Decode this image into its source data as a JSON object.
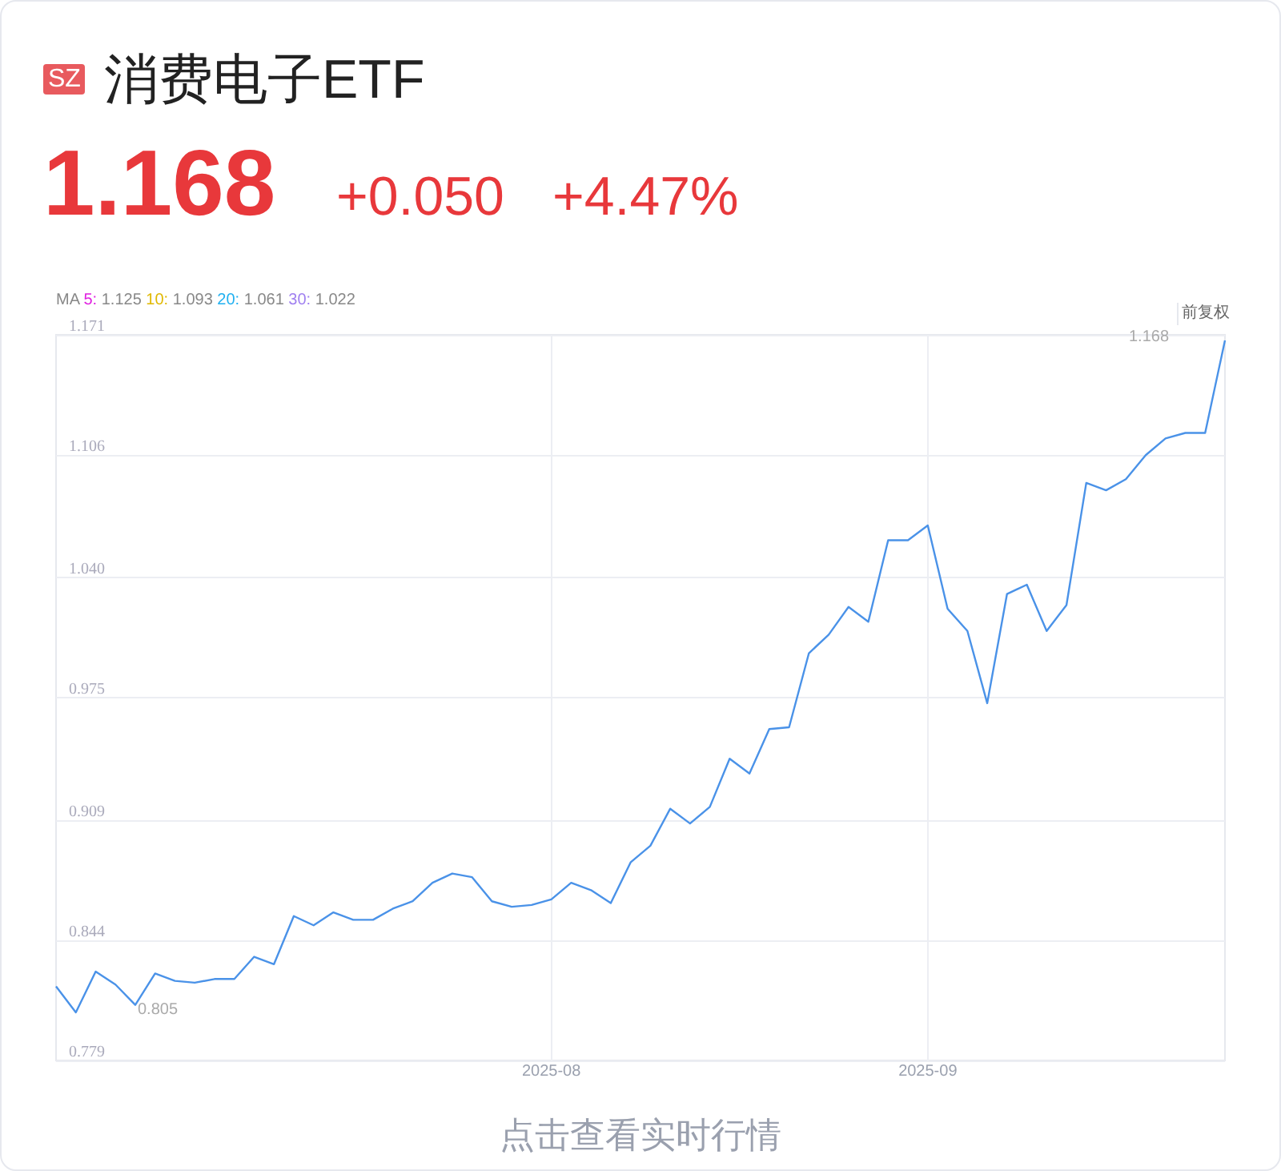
{
  "chart_data": {
    "type": "line",
    "title": "消费电子ETF",
    "annotations": [
      "SZ",
      "1.168",
      "+0.050",
      "+4.47%",
      "MA 5: 1.125 10: 1.093 20: 1.061 30: 1.022",
      "前复权",
      "点击查看实时行情",
      "1.168",
      "0.805"
    ],
    "categories": [
      null,
      null,
      null,
      null,
      null,
      null,
      null,
      null,
      null,
      null,
      null,
      null,
      null,
      null,
      null,
      null,
      null,
      null,
      null,
      null,
      null,
      null,
      null,
      null,
      null,
      "2025-08",
      null,
      null,
      null,
      null,
      null,
      null,
      null,
      null,
      null,
      null,
      null,
      null,
      null,
      null,
      null,
      null,
      null,
      null,
      "2025-09",
      null,
      null,
      null,
      null,
      null,
      null,
      null,
      null,
      null,
      null,
      null,
      null,
      null,
      null,
      null
    ],
    "series": [
      {
        "color": "#4a92e8",
        "values": [
          0.819,
          0.805,
          0.827,
          0.82,
          0.809,
          0.826,
          0.822,
          0.821,
          0.823,
          0.823,
          0.835,
          0.831,
          0.857,
          0.852,
          0.859,
          0.855,
          0.855,
          0.861,
          0.865,
          0.875,
          0.88,
          0.878,
          0.865,
          0.862,
          0.863,
          0.866,
          0.875,
          0.871,
          0.864,
          0.886,
          0.895,
          0.915,
          0.907,
          0.916,
          0.942,
          0.934,
          0.958,
          0.959,
          0.999,
          1.009,
          1.024,
          1.016,
          1.06,
          1.06,
          1.068,
          1.023,
          1.011,
          0.972,
          1.031,
          1.036,
          1.011,
          1.025,
          1.091,
          1.087,
          1.093,
          1.106,
          1.115,
          1.118,
          1.118,
          1.168
        ]
      }
    ],
    "ylim": [
      0.779,
      1.171
    ],
    "yticks": [
      0.779,
      0.844,
      0.909,
      0.975,
      {
        "value": 1.04,
        "label": "1.040"
      },
      1.106,
      1.171
    ],
    "grid": true,
    "marker": "none",
    "line_style": "solid"
  }
}
